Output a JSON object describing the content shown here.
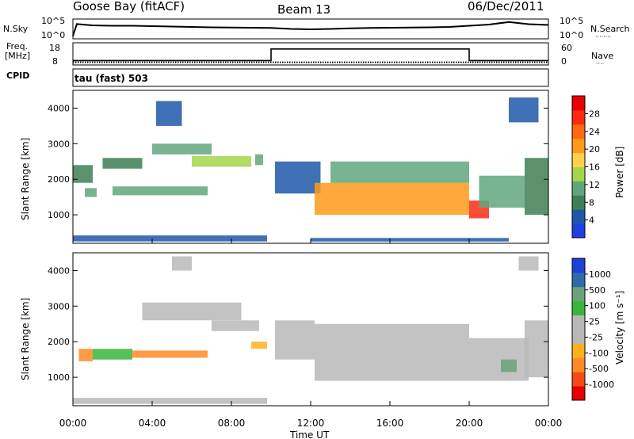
{
  "header": {
    "station": "Goose Bay (fitACF)",
    "beam": "Beam 13",
    "date": "06/Dec/2011"
  },
  "noise_panel": {
    "left_label": "N.Sky",
    "right_label": "N.Search",
    "y_top": "10^5",
    "y_bottom": "10^0"
  },
  "freq_panel": {
    "left_label_1": "Freq.",
    "left_label_2": "[MHz]",
    "left_ticks": [
      "18",
      "8"
    ],
    "right_label": "Nave",
    "right_ticks": [
      "60",
      "0"
    ]
  },
  "cpid": {
    "label": "CPID",
    "text": "tau (fast) 503"
  },
  "colors": {
    "power_scale": [
      "#1f3fe0",
      "#1f57a8",
      "#3e7f53",
      "#5fa77b",
      "#a5d64a",
      "#ffd24a",
      "#ff9a1a",
      "#ff6a10",
      "#ff2a10",
      "#e80000"
    ],
    "velocity_scale": [
      "#e60000",
      "#f44a16",
      "#ff8a24",
      "#ffb020",
      "#b8b8b8",
      "#b8b8b8",
      "#3ab53a",
      "#6aa27a",
      "#2f6aa8",
      "#1f40d8"
    ]
  },
  "time_axis": {
    "label": "Time UT",
    "ticks": [
      "00:00",
      "04:00",
      "08:00",
      "12:00",
      "16:00",
      "20:00",
      "00:00"
    ]
  },
  "chart_data": [
    {
      "type": "heatmap",
      "name": "power",
      "ylabel": "Slant Range [km]",
      "y_ticks": [
        1000,
        2000,
        3000,
        4000
      ],
      "ylim": [
        200,
        4500
      ],
      "xlim_hours": [
        0,
        24
      ],
      "colorbar": {
        "label": "Power [dB]",
        "ticks": [
          4,
          8,
          12,
          16,
          20,
          24,
          28
        ],
        "range": [
          0,
          32
        ]
      },
      "regions": [
        {
          "x": [
            0.0,
            9.8
          ],
          "y": [
            250,
            420
          ],
          "value": 6
        },
        {
          "x": [
            0.0,
            1.0
          ],
          "y": [
            1900,
            2400
          ],
          "value": 8
        },
        {
          "x": [
            0.6,
            1.2
          ],
          "y": [
            1500,
            1750
          ],
          "value": 12
        },
        {
          "x": [
            1.5,
            3.5
          ],
          "y": [
            2300,
            2600
          ],
          "value": 8
        },
        {
          "x": [
            2.0,
            6.8
          ],
          "y": [
            1550,
            1800
          ],
          "value": 12
        },
        {
          "x": [
            4.0,
            7.0
          ],
          "y": [
            2700,
            3000
          ],
          "value": 10
        },
        {
          "x": [
            6.0,
            9.0
          ],
          "y": [
            2350,
            2650
          ],
          "value": 14
        },
        {
          "x": [
            9.2,
            9.6
          ],
          "y": [
            2400,
            2700
          ],
          "value": 10
        },
        {
          "x": [
            4.2,
            5.5
          ],
          "y": [
            3500,
            4200
          ],
          "value": 6
        },
        {
          "x": [
            10.2,
            12.5
          ],
          "y": [
            1600,
            2500
          ],
          "value": 6
        },
        {
          "x": [
            12.2,
            20.0
          ],
          "y": [
            1000,
            1900
          ],
          "value": 22
        },
        {
          "x": [
            13.0,
            20.0
          ],
          "y": [
            1900,
            2500
          ],
          "value": 12
        },
        {
          "x": [
            20.0,
            21.0
          ],
          "y": [
            900,
            1400
          ],
          "value": 28
        },
        {
          "x": [
            20.5,
            22.8
          ],
          "y": [
            1200,
            2100
          ],
          "value": 10
        },
        {
          "x": [
            22.8,
            24.0
          ],
          "y": [
            1000,
            2600
          ],
          "value": 8
        },
        {
          "x": [
            22.0,
            23.5
          ],
          "y": [
            3600,
            4300
          ],
          "value": 6
        },
        {
          "x": [
            12.0,
            22.0
          ],
          "y": [
            250,
            350
          ],
          "value": 6
        }
      ]
    },
    {
      "type": "heatmap",
      "name": "velocity",
      "ylabel": "Slant Range [km]",
      "y_ticks": [
        1000,
        2000,
        3000,
        4000
      ],
      "ylim": [
        200,
        4500
      ],
      "xlim_hours": [
        0,
        24
      ],
      "colorbar": {
        "label": "Velocity [m s⁻¹]",
        "ticks": [
          -1000,
          -500,
          -100,
          -25,
          25,
          100,
          500,
          1000
        ],
        "range": [
          -1200,
          1200
        ]
      },
      "regions": [
        {
          "x": [
            0.0,
            9.8
          ],
          "y": [
            250,
            420
          ],
          "value": 20
        },
        {
          "x": [
            0.3,
            1.0
          ],
          "y": [
            1450,
            1800
          ],
          "value": -300
        },
        {
          "x": [
            1.0,
            3.0
          ],
          "y": [
            1500,
            1800
          ],
          "value": 100
        },
        {
          "x": [
            3.0,
            6.8
          ],
          "y": [
            1550,
            1750
          ],
          "value": -100
        },
        {
          "x": [
            3.5,
            8.5
          ],
          "y": [
            2600,
            3100
          ],
          "value": 0
        },
        {
          "x": [
            7.0,
            9.4
          ],
          "y": [
            2300,
            2600
          ],
          "value": 0
        },
        {
          "x": [
            9.0,
            9.8
          ],
          "y": [
            1800,
            2000
          ],
          "value": -50
        },
        {
          "x": [
            5.0,
            6.0
          ],
          "y": [
            4000,
            4400
          ],
          "value": 0
        },
        {
          "x": [
            10.2,
            12.2
          ],
          "y": [
            1500,
            2600
          ],
          "value": 0
        },
        {
          "x": [
            12.2,
            20.0
          ],
          "y": [
            900,
            2500
          ],
          "value": 0
        },
        {
          "x": [
            20.0,
            23.0
          ],
          "y": [
            900,
            2100
          ],
          "value": 0
        },
        {
          "x": [
            21.6,
            22.4
          ],
          "y": [
            1150,
            1500
          ],
          "value": 150
        },
        {
          "x": [
            22.8,
            24.0
          ],
          "y": [
            1000,
            2600
          ],
          "value": 0
        },
        {
          "x": [
            22.5,
            23.5
          ],
          "y": [
            4000,
            4400
          ],
          "value": 0
        }
      ]
    }
  ],
  "noise_series": {
    "type": "line",
    "xlim_hours": [
      0,
      24
    ],
    "x": [
      0,
      0.2,
      0.5,
      1,
      2,
      3,
      4,
      5,
      6,
      7,
      8,
      9,
      10,
      11,
      12,
      13,
      14,
      15,
      16,
      17,
      18,
      19,
      20,
      21,
      22,
      23,
      24
    ],
    "y_level": [
      0.15,
      0.75,
      0.72,
      0.68,
      0.66,
      0.66,
      0.64,
      0.62,
      0.6,
      0.58,
      0.57,
      0.56,
      0.55,
      0.5,
      0.48,
      0.5,
      0.53,
      0.55,
      0.56,
      0.57,
      0.58,
      0.6,
      0.66,
      0.72,
      0.85,
      0.74,
      0.7
    ]
  },
  "freq_series": {
    "type": "line",
    "xlim_hours": [
      0,
      24
    ],
    "steps": [
      {
        "x": [
          0,
          10
        ],
        "freq_level": 0.2
      },
      {
        "x": [
          10,
          20
        ],
        "freq_level": 0.72
      },
      {
        "x": [
          20,
          24
        ],
        "freq_level": 0.2
      }
    ],
    "nave_level": 0.12
  }
}
